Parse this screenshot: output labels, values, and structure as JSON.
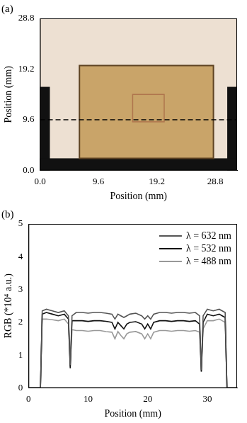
{
  "chart_data": [
    {
      "type": "image",
      "title": "(a)",
      "xlabel": "Position (mm)",
      "ylabel": "Position (mm)",
      "xlim": [
        0,
        32.4
      ],
      "ylim": [
        0,
        28.8
      ],
      "xticks": [
        {
          "value": 0,
          "label": "0.0"
        },
        9.6,
        19.2,
        28.8
      ],
      "yticks": [
        {
          "value": 0,
          "label": "0.0"
        },
        9.6,
        19.2,
        28.8
      ],
      "grid": false,
      "series": [
        {
          "x": [
            0,
            32.4
          ],
          "values": [
            9.6,
            9.6
          ],
          "color": "#000000",
          "line_style": "dashed",
          "marker": "none"
        }
      ]
    },
    {
      "type": "line",
      "title": "(b)",
      "xlabel": "Position (mm)",
      "ylabel": "RGB (*10⁴ a.u.)",
      "xlim": [
        0,
        35
      ],
      "ylim": [
        0,
        5
      ],
      "xticks": [
        0,
        10,
        20,
        30
      ],
      "yticks": [
        0,
        1,
        2,
        3,
        4,
        5
      ],
      "grid": false,
      "legend": "upper right",
      "x": [
        0,
        1.5,
        2.0,
        2.3,
        3,
        4,
        5,
        6,
        6.7,
        7.0,
        7.3,
        8,
        9,
        10,
        11,
        12,
        13,
        14,
        14.5,
        15,
        15.5,
        16,
        16.5,
        17,
        18,
        19,
        19.5,
        20,
        20.5,
        21,
        22,
        23,
        24,
        25,
        26,
        27,
        28,
        28.7,
        29.0,
        29.3,
        30,
        31,
        32,
        32.5,
        33,
        33.3,
        35
      ],
      "series": [
        {
          "name": "λ = 632 nm",
          "color": "#555555",
          "marker": "none",
          "line_style": "solid",
          "values": [
            0,
            0,
            0,
            2.35,
            2.4,
            2.35,
            2.3,
            2.35,
            2.2,
            0.7,
            2.2,
            2.3,
            2.3,
            2.28,
            2.3,
            2.3,
            2.28,
            2.25,
            2.1,
            2.25,
            2.2,
            2.15,
            2.2,
            2.25,
            2.28,
            2.2,
            2.1,
            2.2,
            2.1,
            2.25,
            2.3,
            2.3,
            2.28,
            2.3,
            2.3,
            2.28,
            2.3,
            2.2,
            0.55,
            2.2,
            2.4,
            2.35,
            2.4,
            2.35,
            2.3,
            0,
            0
          ]
        },
        {
          "name": "λ = 532 nm",
          "color": "#111111",
          "marker": "none",
          "line_style": "solid",
          "values": [
            0,
            0,
            0,
            2.25,
            2.3,
            2.25,
            2.2,
            2.25,
            2.1,
            0.6,
            2.05,
            2.05,
            2.05,
            2.03,
            2.05,
            2.05,
            2.03,
            2.0,
            1.8,
            2.0,
            1.9,
            1.8,
            1.95,
            2.0,
            2.02,
            1.95,
            1.8,
            1.95,
            1.8,
            2.0,
            2.05,
            2.05,
            2.03,
            2.05,
            2.05,
            2.03,
            2.05,
            1.95,
            0.5,
            2.0,
            2.25,
            2.2,
            2.25,
            2.2,
            2.15,
            0,
            0
          ]
        },
        {
          "name": "λ = 488 nm",
          "color": "#999999",
          "marker": "none",
          "line_style": "solid",
          "values": [
            0,
            0,
            0,
            2.1,
            2.1,
            2.08,
            2.05,
            2.1,
            1.95,
            0.65,
            1.78,
            1.75,
            1.75,
            1.73,
            1.75,
            1.75,
            1.72,
            1.7,
            1.5,
            1.72,
            1.6,
            1.5,
            1.65,
            1.7,
            1.72,
            1.65,
            1.5,
            1.65,
            1.5,
            1.7,
            1.75,
            1.75,
            1.73,
            1.75,
            1.75,
            1.73,
            1.75,
            1.7,
            0.5,
            1.8,
            2.05,
            2.05,
            2.1,
            2.05,
            2.0,
            0,
            0
          ]
        }
      ]
    }
  ]
}
